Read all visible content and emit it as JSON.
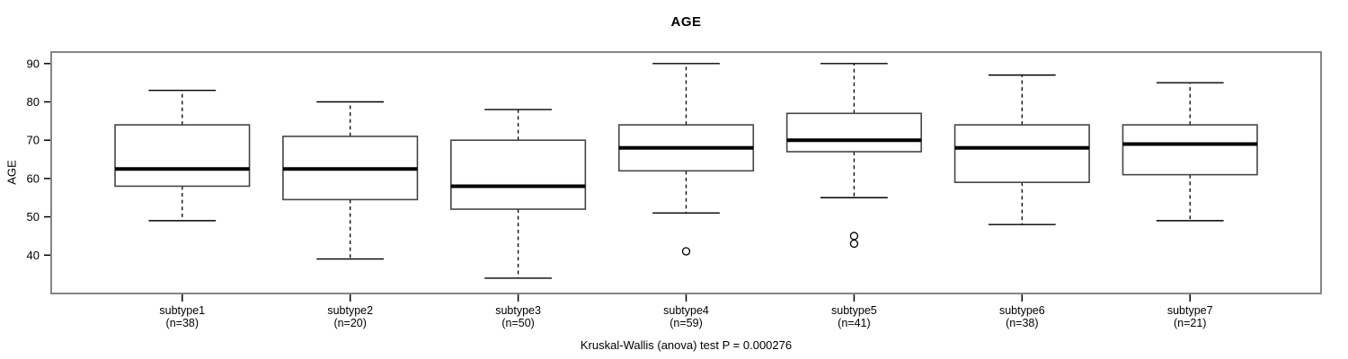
{
  "chart_data": {
    "type": "boxplot",
    "title": "AGE",
    "ylabel": "AGE",
    "xlabel": "",
    "annotation": "Kruskal-Wallis (anova) test P = 0.000276",
    "ylim": [
      30,
      93
    ],
    "yticks": [
      40,
      50,
      60,
      70,
      80,
      90
    ],
    "grid": false,
    "legend": "none",
    "groups": [
      {
        "label": "subtype1",
        "n_label": "(n=38)",
        "n": 38,
        "whisker_low": 49,
        "q1": 58,
        "median": 62.5,
        "q3": 74,
        "whisker_high": 83,
        "outliers": []
      },
      {
        "label": "subtype2",
        "n_label": "(n=20)",
        "n": 20,
        "whisker_low": 39,
        "q1": 54.5,
        "median": 62.5,
        "q3": 71,
        "whisker_high": 80,
        "outliers": []
      },
      {
        "label": "subtype3",
        "n_label": "(n=50)",
        "n": 50,
        "whisker_low": 34,
        "q1": 52,
        "median": 58,
        "q3": 70,
        "whisker_high": 78,
        "outliers": []
      },
      {
        "label": "subtype4",
        "n_label": "(n=59)",
        "n": 59,
        "whisker_low": 51,
        "q1": 62,
        "median": 68,
        "q3": 74,
        "whisker_high": 90,
        "outliers": [
          41
        ]
      },
      {
        "label": "subtype5",
        "n_label": "(n=41)",
        "n": 41,
        "whisker_low": 55,
        "q1": 67,
        "median": 70,
        "q3": 77,
        "whisker_high": 90,
        "outliers": [
          45,
          43
        ]
      },
      {
        "label": "subtype6",
        "n_label": "(n=38)",
        "n": 38,
        "whisker_low": 48,
        "q1": 59,
        "median": 68,
        "q3": 74,
        "whisker_high": 87,
        "outliers": []
      },
      {
        "label": "subtype7",
        "n_label": "(n=21)",
        "n": 21,
        "whisker_low": 49,
        "q1": 61,
        "median": 69,
        "q3": 74,
        "whisker_high": 85,
        "outliers": []
      }
    ],
    "colors": {
      "background": "#ffffff",
      "frame": "#858585",
      "box_stroke": "#454545",
      "box_fill": "#ffffff",
      "median": "#000000",
      "whisker": "#000000",
      "tick": "#000000",
      "text": "#000000"
    }
  }
}
